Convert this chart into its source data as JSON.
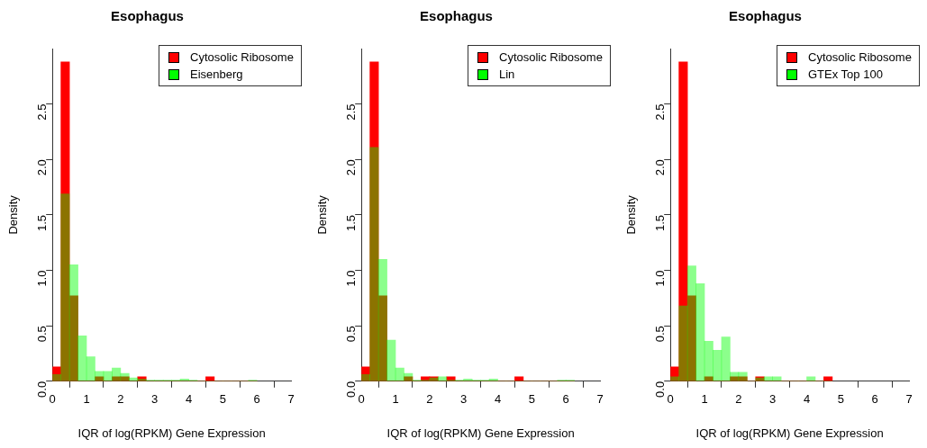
{
  "chart_data": [
    {
      "type": "histogram",
      "title": "Esophagus",
      "xlabel": "IQR of log(RPKM) Gene Expression",
      "ylabel": "Density",
      "legend": "top right",
      "grid": false,
      "bins": [
        0,
        0.25,
        0.5,
        0.75,
        1,
        1.25,
        1.5,
        1.75,
        2,
        2.25,
        2.5,
        2.75,
        3,
        3.25,
        3.5,
        3.75,
        4,
        4.25,
        4.5,
        4.75,
        5,
        5.25,
        5.5,
        5.75,
        6
      ],
      "xlim": [
        0,
        7
      ],
      "xticks": [
        0,
        1,
        2,
        3,
        4,
        5,
        6,
        7
      ],
      "ylim": [
        0,
        3
      ],
      "yticks": [
        {
          "value": 0,
          "label": "0.0"
        },
        0.5,
        {
          "value": 1,
          "label": "1.0"
        },
        1.5,
        {
          "value": 2,
          "label": "2.0"
        },
        2.5
      ],
      "series": [
        {
          "name": "Cytosolic Ribosome",
          "color": "#ff0000",
          "values": [
            0.13,
            2.88,
            0.77,
            0,
            0,
            0.04,
            0,
            0.04,
            0.04,
            0,
            0.04,
            0,
            0,
            0,
            0,
            0,
            0,
            0,
            0.04,
            0,
            0,
            0,
            0,
            0
          ]
        },
        {
          "name": "Eisenberg",
          "color": "#00ff00",
          "values": [
            0.06,
            1.69,
            1.05,
            0.41,
            0.22,
            0.09,
            0.09,
            0.12,
            0.07,
            0.03,
            0.02,
            0.01,
            0.01,
            0.01,
            0.01,
            0.02,
            0.01,
            0,
            0,
            0,
            0,
            0,
            0,
            0.01
          ]
        }
      ]
    },
    {
      "type": "histogram",
      "title": "Esophagus",
      "xlabel": "IQR of log(RPKM) Gene Expression",
      "ylabel": "Density",
      "legend": "top right",
      "grid": false,
      "bins": [
        0,
        0.25,
        0.5,
        0.75,
        1,
        1.25,
        1.5,
        1.75,
        2,
        2.25,
        2.5,
        2.75,
        3,
        3.25,
        3.5,
        3.75,
        4,
        4.25,
        4.5,
        4.75,
        5,
        5.25,
        5.5,
        5.75,
        6,
        6.25
      ],
      "xlim": [
        0,
        7
      ],
      "xticks": [
        0,
        1,
        2,
        3,
        4,
        5,
        6,
        7
      ],
      "ylim": [
        0,
        3
      ],
      "yticks": [
        {
          "value": 0,
          "label": "0.0"
        },
        0.5,
        {
          "value": 1,
          "label": "1.0"
        },
        1.5,
        {
          "value": 2,
          "label": "2.0"
        },
        2.5
      ],
      "series": [
        {
          "name": "Cytosolic Ribosome",
          "color": "#ff0000",
          "values": [
            0.13,
            2.88,
            0.77,
            0,
            0,
            0.04,
            0,
            0.04,
            0.04,
            0,
            0.04,
            0,
            0,
            0,
            0,
            0,
            0,
            0,
            0.04,
            0,
            0,
            0,
            0,
            0,
            0
          ]
        },
        {
          "name": "Lin",
          "color": "#00ff00",
          "values": [
            0.06,
            2.11,
            1.1,
            0.37,
            0.12,
            0.07,
            0.01,
            0.01,
            0.03,
            0.04,
            0.01,
            0.01,
            0.02,
            0.01,
            0.01,
            0.02,
            0,
            0,
            0,
            0,
            0,
            0,
            0,
            0.01,
            0.01
          ]
        }
      ]
    },
    {
      "type": "histogram",
      "title": "Esophagus",
      "xlabel": "IQR of log(RPKM) Gene Expression",
      "ylabel": "Density",
      "legend": "top right",
      "grid": false,
      "bins": [
        0,
        0.25,
        0.5,
        0.75,
        1,
        1.25,
        1.5,
        1.75,
        2,
        2.25,
        2.5,
        2.75,
        3,
        3.25,
        3.5,
        3.75,
        4,
        4.25,
        4.5,
        4.75
      ],
      "xlim": [
        0,
        7
      ],
      "xticks": [
        0,
        1,
        2,
        3,
        4,
        5,
        6,
        7
      ],
      "ylim": [
        0,
        3
      ],
      "yticks": [
        {
          "value": 0,
          "label": "0.0"
        },
        0.5,
        {
          "value": 1,
          "label": "1.0"
        },
        1.5,
        {
          "value": 2,
          "label": "2.0"
        },
        2.5
      ],
      "series": [
        {
          "name": "Cytosolic Ribosome",
          "color": "#ff0000",
          "values": [
            0.13,
            2.88,
            0.77,
            0,
            0.04,
            0,
            0,
            0.04,
            0.04,
            0,
            0.04,
            0,
            0,
            0,
            0,
            0,
            0,
            0,
            0.04
          ]
        },
        {
          "name": "GTEx Top 100",
          "color": "#00ff00",
          "values": [
            0.04,
            0.68,
            1.04,
            0.88,
            0.36,
            0.28,
            0.4,
            0.08,
            0.08,
            0,
            0.03,
            0.04,
            0.04,
            0,
            0,
            0,
            0.04,
            0,
            0
          ]
        }
      ]
    }
  ]
}
